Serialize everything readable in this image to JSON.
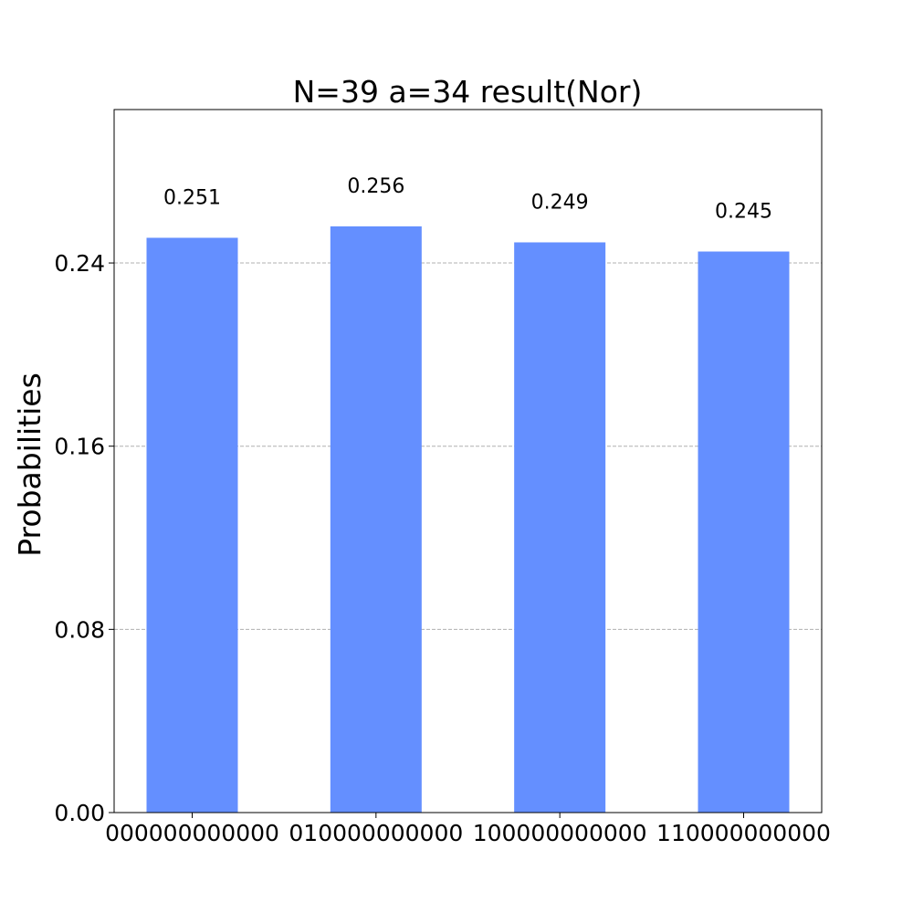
{
  "chart_data": {
    "type": "bar",
    "title": "N=39 a=34 result(Nor)",
    "xlabel": "",
    "ylabel": "Probabilities",
    "categories": [
      "000000000000",
      "010000000000",
      "100000000000",
      "110000000000"
    ],
    "values": [
      0.251,
      0.256,
      0.249,
      0.245
    ],
    "data_labels": [
      "0.251",
      "0.256",
      "0.249",
      "0.245"
    ],
    "yticks": [
      0.0,
      0.08,
      0.16,
      0.24
    ],
    "ytick_labels": [
      "0.00",
      "0.08",
      "0.16",
      "0.24"
    ],
    "ylim": [
      0,
      0.307
    ],
    "bar_color": "#648fff",
    "grid": "horizontal dashed",
    "legend": "none"
  }
}
